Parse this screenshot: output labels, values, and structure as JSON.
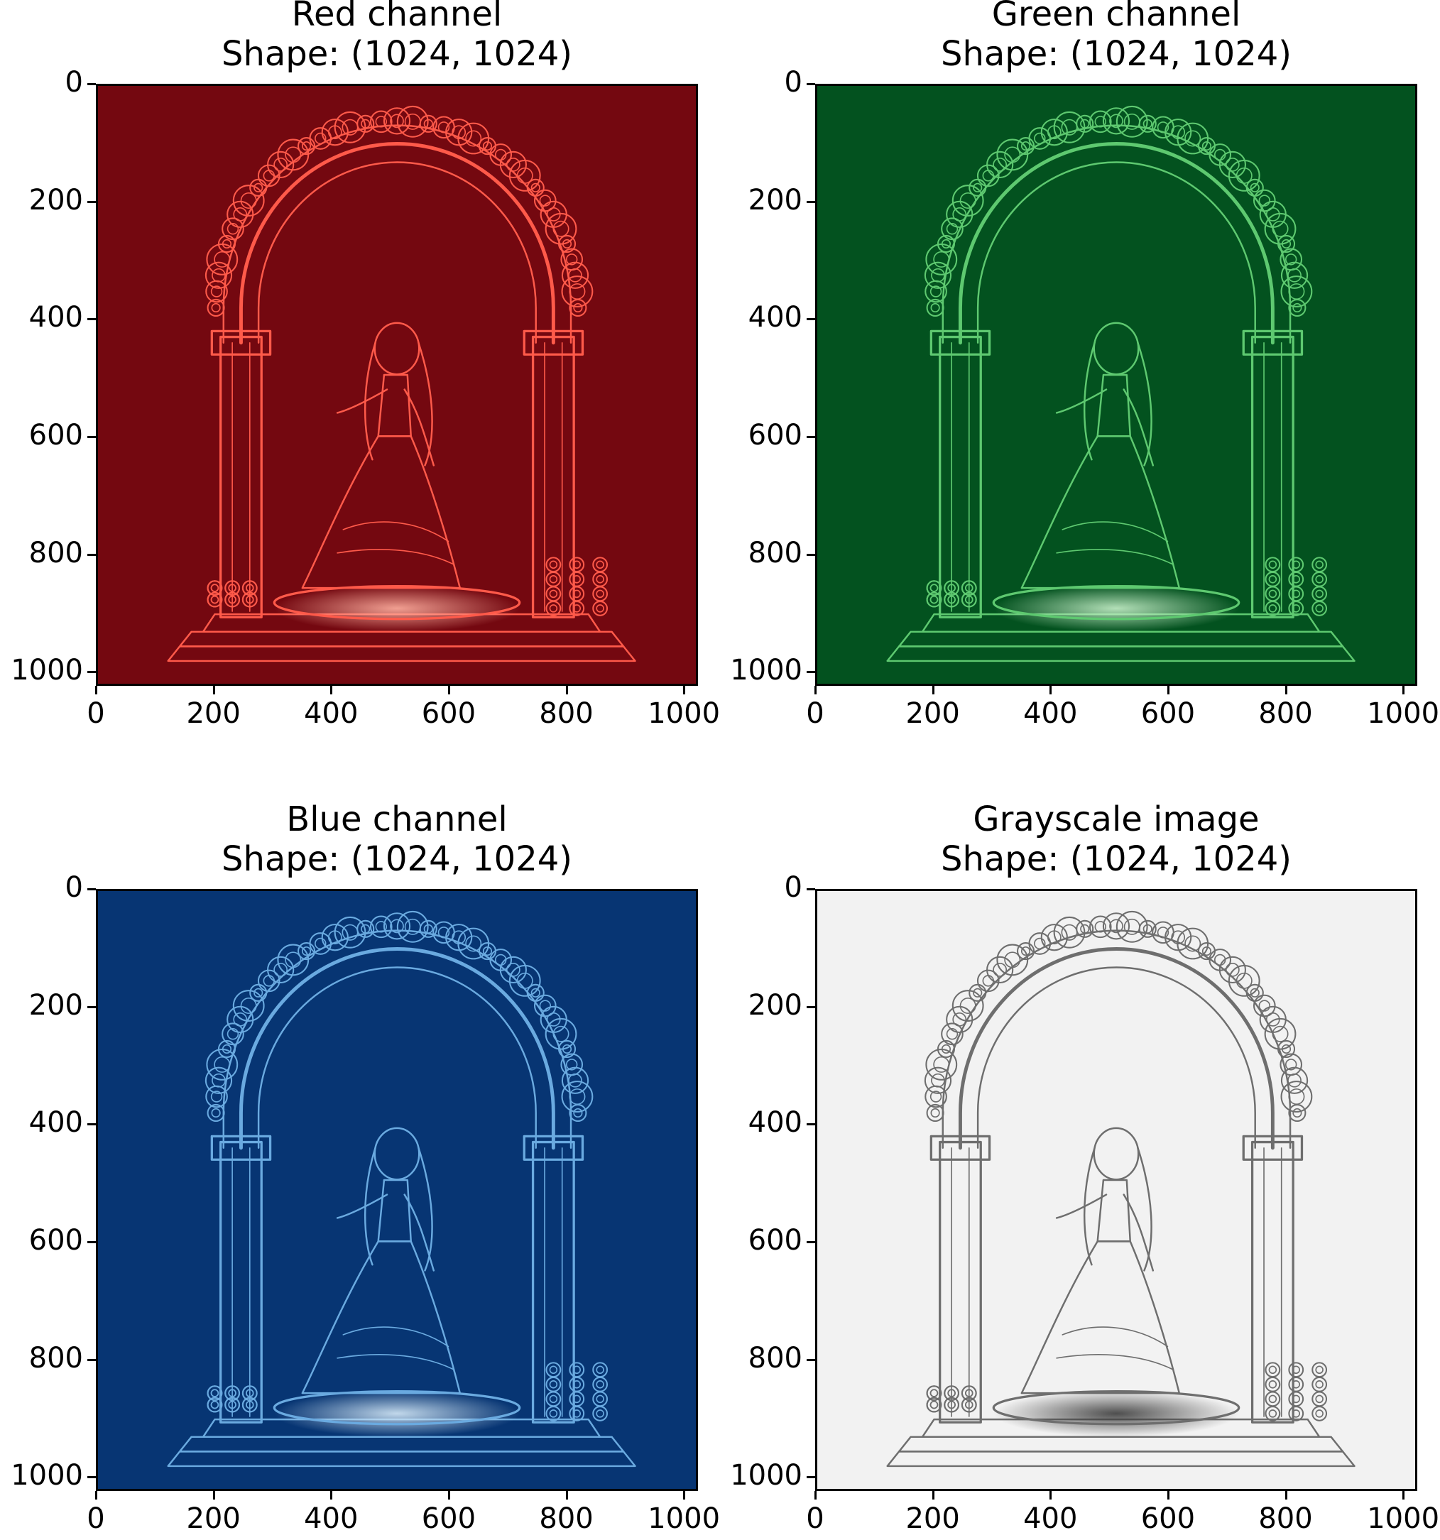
{
  "panels": [
    {
      "id": "red",
      "title_line1": "Red channel",
      "title_line2": "Shape: (1024, 1024)",
      "bg": "#740810",
      "line": "#ff5a4a",
      "glow": "#ffb0a0",
      "dark": "#5e0008"
    },
    {
      "id": "green",
      "title_line1": "Green channel",
      "title_line2": "Shape: (1024, 1024)",
      "bg": "#03521f",
      "line": "#5ec970",
      "glow": "#c7f0c9",
      "dark": "#02401a"
    },
    {
      "id": "blue",
      "title_line1": "Blue channel",
      "title_line2": "Shape: (1024, 1024)",
      "bg": "#073573",
      "line": "#6aaae0",
      "glow": "#d6eaf8",
      "dark": "#052a5e"
    },
    {
      "id": "gray",
      "title_line1": "Grayscale image",
      "title_line2": "Shape: (1024, 1024)",
      "bg": "#f2f2f2",
      "line": "#6e6e6e",
      "glow": "#3c3c3c",
      "dark": "#ffffff"
    }
  ],
  "axes": {
    "x_ticks": [
      "0",
      "200",
      "400",
      "600",
      "800",
      "1000"
    ],
    "y_ticks": [
      "0",
      "200",
      "400",
      "600",
      "800",
      "1000"
    ],
    "x_values": [
      0,
      200,
      400,
      600,
      800,
      1000
    ],
    "y_values": [
      0,
      200,
      400,
      600,
      800,
      1000
    ],
    "range": [
      0,
      1024
    ]
  }
}
